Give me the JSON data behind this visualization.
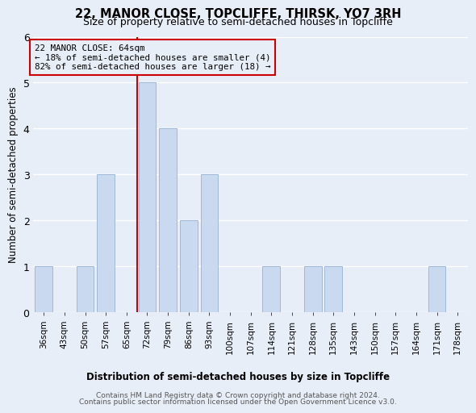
{
  "title1": "22, MANOR CLOSE, TOPCLIFFE, THIRSK, YO7 3RH",
  "title2": "Size of property relative to semi-detached houses in Topcliffe",
  "xlabel": "Distribution of semi-detached houses by size in Topcliffe",
  "ylabel": "Number of semi-detached properties",
  "categories": [
    "36sqm",
    "43sqm",
    "50sqm",
    "57sqm",
    "65sqm",
    "72sqm",
    "79sqm",
    "86sqm",
    "93sqm",
    "100sqm",
    "107sqm",
    "114sqm",
    "121sqm",
    "128sqm",
    "135sqm",
    "143sqm",
    "150sqm",
    "157sqm",
    "164sqm",
    "171sqm",
    "178sqm"
  ],
  "values": [
    1,
    0,
    1,
    3,
    0,
    5,
    4,
    2,
    3,
    0,
    0,
    1,
    0,
    1,
    1,
    0,
    0,
    0,
    0,
    1,
    0
  ],
  "bar_color": "#c9d9f0",
  "bar_edgecolor": "#a0b8d8",
  "highlight_index": 4,
  "highlight_color": "#cc0000",
  "annotation_line1": "22 MANOR CLOSE: 64sqm",
  "annotation_line2": "← 18% of semi-detached houses are smaller (4)",
  "annotation_line3": "82% of semi-detached houses are larger (18) →",
  "annotation_box_edgecolor": "#cc0000",
  "ylim": [
    0,
    6
  ],
  "yticks": [
    0,
    1,
    2,
    3,
    4,
    5,
    6
  ],
  "footer1": "Contains HM Land Registry data © Crown copyright and database right 2024.",
  "footer2": "Contains public sector information licensed under the Open Government Licence v3.0.",
  "bg_color": "#e8eef8",
  "grid_color": "#ffffff"
}
